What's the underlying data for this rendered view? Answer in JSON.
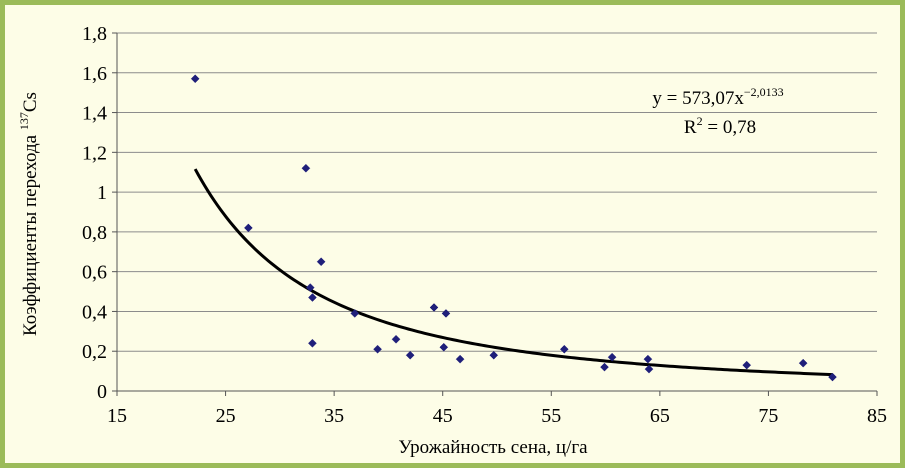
{
  "chart_data": {
    "type": "scatter",
    "xlabel": "Урожайность сена, ц/га",
    "ylabel_main": "Коэффициенты перехода ",
    "ylabel_sup": "137",
    "ylabel_tail": "Cs",
    "xlim": [
      15,
      85
    ],
    "ylim": [
      0,
      1.8
    ],
    "x_ticks": [
      "15",
      "25",
      "35",
      "45",
      "55",
      "65",
      "75",
      "85"
    ],
    "y_ticks": [
      "0",
      "0,2",
      "0,4",
      "0,6",
      "0,8",
      "1",
      "1,2",
      "1,4",
      "1,6",
      "1,8"
    ],
    "grid": "horizontal",
    "marker_color": "#1f1f7a",
    "series": [
      {
        "points": [
          [
            22.2,
            1.57
          ],
          [
            27.1,
            0.82
          ],
          [
            32.4,
            1.12
          ],
          [
            32.8,
            0.52
          ],
          [
            33.0,
            0.47
          ],
          [
            33.0,
            0.24
          ],
          [
            33.8,
            0.65
          ],
          [
            36.9,
            0.39
          ],
          [
            39.0,
            0.21
          ],
          [
            40.7,
            0.26
          ],
          [
            42.0,
            0.18
          ],
          [
            44.2,
            0.42
          ],
          [
            45.1,
            0.22
          ],
          [
            45.3,
            0.39
          ],
          [
            46.6,
            0.16
          ],
          [
            49.7,
            0.18
          ],
          [
            56.2,
            0.21
          ],
          [
            59.9,
            0.12
          ],
          [
            60.6,
            0.17
          ],
          [
            63.9,
            0.16
          ],
          [
            64.0,
            0.11
          ],
          [
            73.0,
            0.13
          ],
          [
            78.2,
            0.14
          ],
          [
            80.9,
            0.07
          ]
        ]
      }
    ],
    "trendline": {
      "type": "power",
      "a": 573.07,
      "b": -2.0133,
      "x_range": [
        22.2,
        80.9
      ],
      "equation_prefix": "y = 573,07x",
      "equation_exp": "−2,0133",
      "r2_prefix": "R",
      "r2_exp": "2",
      "r2_suffix": " = 0,78"
    }
  }
}
